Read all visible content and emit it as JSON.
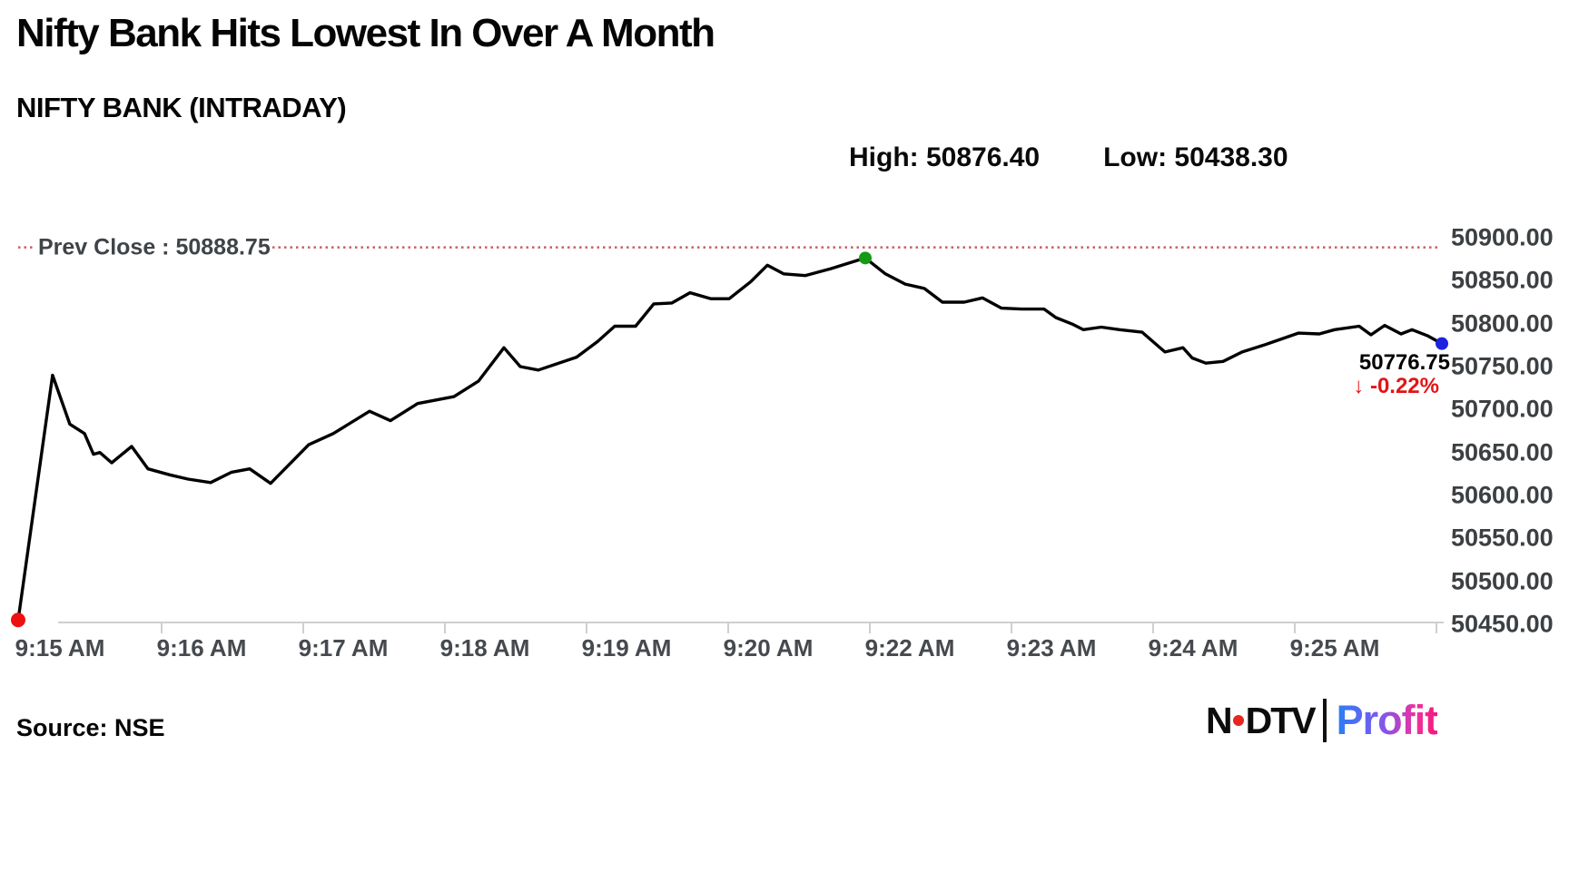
{
  "header": {
    "title": "Nifty Bank Hits Lowest In Over A Month",
    "subtitle": "NIFTY BANK (INTRADAY)",
    "high_text": "High: 50876.40",
    "low_text": "Low: 50438.30"
  },
  "footer": {
    "source": "Source: NSE",
    "logo": {
      "ndtv_left": "N",
      "ndtv_right": "DTV",
      "profit": "Profit"
    }
  },
  "chart_data": {
    "type": "line",
    "title": "NIFTY BANK (INTRADAY)",
    "xlabel": "",
    "ylabel": "",
    "grid": false,
    "legend": "none",
    "high": 50876.4,
    "low": 50438.3,
    "prev_close": {
      "label": "Prev Close : 50888.75",
      "value": 50888.75
    },
    "last": {
      "value": 50776.75,
      "text": "50776.75",
      "change_text": "↓ -0.22%"
    },
    "x_axis": {
      "labels": [
        "9:15 AM",
        "9:16 AM",
        "9:17 AM",
        "9:18 AM",
        "9:19 AM",
        "9:20 AM",
        "9:22 AM",
        "9:23 AM",
        "9:24 AM",
        "9:25 AM"
      ]
    },
    "y_axis": {
      "min": 50450,
      "max": 50900,
      "step": 50,
      "tick_labels": [
        "50900.00",
        "50850.00",
        "50800.00",
        "50750.00",
        "50700.00",
        "50650.00",
        "50600.00",
        "50550.00",
        "50500.00",
        "50450.00"
      ]
    },
    "colors": {
      "line": "#000000",
      "prev_close_line": "#c4605f",
      "axis": "#cfcfcf",
      "start_marker": "#ee1111",
      "high_marker": "#149a14",
      "last_marker": "#1e22dd",
      "change_text": "#e41414"
    },
    "series": [
      {
        "name": "NIFTY BANK",
        "points": [
          [
            0.0,
            50455
          ],
          [
            0.0242,
            50740
          ],
          [
            0.0363,
            50683
          ],
          [
            0.0466,
            50672
          ],
          [
            0.0529,
            50648
          ],
          [
            0.0574,
            50650
          ],
          [
            0.0657,
            50638
          ],
          [
            0.0797,
            50657
          ],
          [
            0.0912,
            50631
          ],
          [
            0.1065,
            50624
          ],
          [
            0.1193,
            50619
          ],
          [
            0.1352,
            50615
          ],
          [
            0.1499,
            50627
          ],
          [
            0.1626,
            50631
          ],
          [
            0.1773,
            50614
          ],
          [
            0.2041,
            50659
          ],
          [
            0.2213,
            50672
          ],
          [
            0.2468,
            50698
          ],
          [
            0.2615,
            50687
          ],
          [
            0.2806,
            50707
          ],
          [
            0.3061,
            50715
          ],
          [
            0.3233,
            50733
          ],
          [
            0.3412,
            50772
          ],
          [
            0.3527,
            50750
          ],
          [
            0.3654,
            50746
          ],
          [
            0.3922,
            50761
          ],
          [
            0.4069,
            50779
          ],
          [
            0.419,
            50797
          ],
          [
            0.4337,
            50797
          ],
          [
            0.4464,
            50823
          ],
          [
            0.4592,
            50824
          ],
          [
            0.4719,
            50836
          ],
          [
            0.4866,
            50829
          ],
          [
            0.4994,
            50829
          ],
          [
            0.5147,
            50849
          ],
          [
            0.5262,
            50868
          ],
          [
            0.5376,
            50858
          ],
          [
            0.5529,
            50856
          ],
          [
            0.5708,
            50864
          ],
          [
            0.595,
            50876.4
          ],
          [
            0.6091,
            50858
          ],
          [
            0.6231,
            50846
          ],
          [
            0.6365,
            50841
          ],
          [
            0.6492,
            50825
          ],
          [
            0.6645,
            50825
          ],
          [
            0.6773,
            50830
          ],
          [
            0.6907,
            50818
          ],
          [
            0.7047,
            50817
          ],
          [
            0.7206,
            50817
          ],
          [
            0.7289,
            50807
          ],
          [
            0.741,
            50799
          ],
          [
            0.7481,
            50793
          ],
          [
            0.7608,
            50796
          ],
          [
            0.7736,
            50793
          ],
          [
            0.7895,
            50790
          ],
          [
            0.7985,
            50777
          ],
          [
            0.8055,
            50767
          ],
          [
            0.8182,
            50772
          ],
          [
            0.8246,
            50760
          ],
          [
            0.8342,
            50754
          ],
          [
            0.8463,
            50756
          ],
          [
            0.8597,
            50767
          ],
          [
            0.875,
            50775
          ],
          [
            0.8992,
            50789
          ],
          [
            0.9139,
            50788
          ],
          [
            0.9247,
            50793
          ],
          [
            0.9419,
            50797
          ],
          [
            0.9502,
            50787
          ],
          [
            0.9598,
            50798
          ],
          [
            0.9713,
            50788
          ],
          [
            0.979,
            50793
          ],
          [
            0.9898,
            50786
          ],
          [
            1.0,
            50776.75
          ]
        ]
      }
    ]
  }
}
